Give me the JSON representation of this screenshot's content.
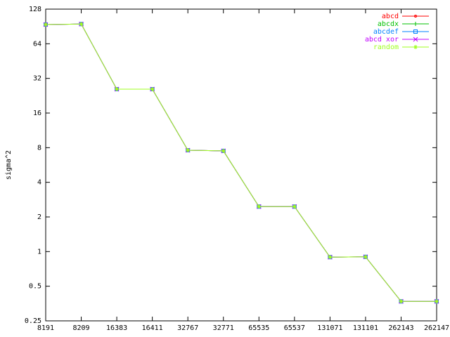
{
  "chart_data": {
    "type": "line",
    "y_label": "sigma^2",
    "categories": [
      "8191",
      "8209",
      "16383",
      "16411",
      "32767",
      "32771",
      "65535",
      "65537",
      "131071",
      "131101",
      "262143",
      "262147"
    ],
    "y_log_base": 2,
    "ylim": [
      0.25,
      128
    ],
    "yticks": [
      0.25,
      0.5,
      1,
      2,
      4,
      8,
      16,
      32,
      64,
      128
    ],
    "legend_position": "top-right",
    "series": [
      {
        "name": "abcd",
        "color": "#ff0000",
        "values": [
          94,
          95,
          25.8,
          25.8,
          7.6,
          7.5,
          2.46,
          2.46,
          0.895,
          0.9,
          0.369,
          0.369
        ]
      },
      {
        "name": "abcdx",
        "color": "#00c000",
        "values": [
          94,
          95,
          25.8,
          25.8,
          7.6,
          7.5,
          2.46,
          2.46,
          0.895,
          0.9,
          0.369,
          0.369
        ]
      },
      {
        "name": "abcdef",
        "color": "#0080ff",
        "values": [
          94,
          95,
          25.8,
          25.8,
          7.6,
          7.5,
          2.46,
          2.46,
          0.895,
          0.9,
          0.369,
          0.369
        ]
      },
      {
        "name": "abcd xor",
        "color": "#c000ff",
        "values": [
          94,
          95,
          25.8,
          25.8,
          7.6,
          7.5,
          2.46,
          2.46,
          0.895,
          0.9,
          0.369,
          0.369
        ]
      },
      {
        "name": "random",
        "color": "#a0ff20",
        "values": [
          94,
          95,
          25.8,
          25.8,
          7.6,
          7.5,
          2.46,
          2.46,
          0.895,
          0.9,
          0.369,
          0.369
        ]
      }
    ]
  }
}
